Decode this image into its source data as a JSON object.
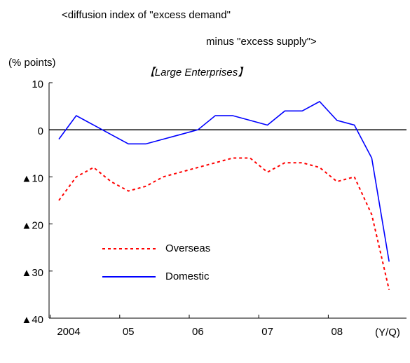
{
  "chart_data": {
    "type": "line",
    "title": "<diffusion index of \"excess demand\"",
    "title_line2": "minus \"excess supply\">",
    "y_axis_label": "(% points)",
    "subtitle": "【Large Enterprises】",
    "x_axis_label": "(Y/Q)",
    "categories": [
      "2004",
      null,
      null,
      null,
      "05",
      null,
      null,
      null,
      "06",
      null,
      null,
      null,
      "07",
      null,
      null,
      null,
      "08",
      null,
      null,
      null
    ],
    "series": [
      {
        "name": "Overseas",
        "color": "#ff0000",
        "dash": true,
        "values": [
          -15,
          -10,
          -8,
          -11,
          -13,
          -12,
          -10,
          -9,
          -8,
          -7,
          -6,
          -6,
          -9,
          -7,
          -7,
          -8,
          -11,
          -10,
          -18,
          -34
        ]
      },
      {
        "name": "Domestic",
        "color": "#0000ff",
        "dash": false,
        "values": [
          -2,
          3,
          1,
          -1,
          -3,
          -3,
          -2,
          -1,
          0,
          3,
          3,
          2,
          1,
          4,
          4,
          6,
          2,
          1,
          -6,
          -28
        ]
      }
    ],
    "ylim": [
      -40,
      10
    ],
    "yticks": [
      {
        "value": 10,
        "label": "10"
      },
      {
        "value": 0,
        "label": "0"
      },
      {
        "value": -10,
        "label": "▲10"
      },
      {
        "value": -20,
        "label": "▲20"
      },
      {
        "value": -30,
        "label": "▲30"
      },
      {
        "value": -40,
        "label": "▲40"
      }
    ],
    "zero_line": true
  }
}
